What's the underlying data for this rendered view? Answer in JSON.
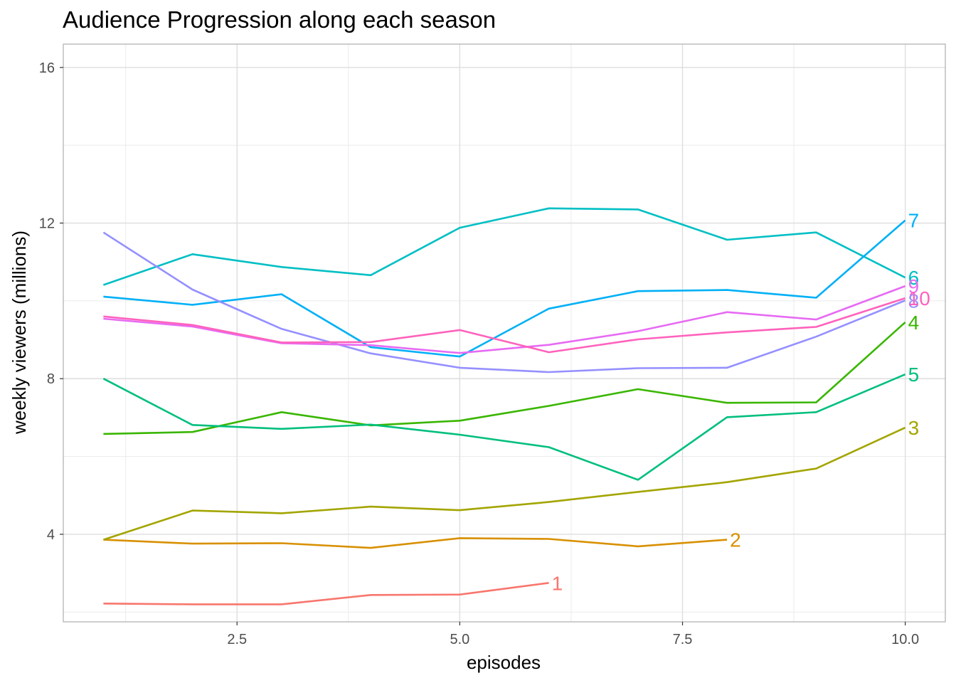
{
  "chart_data": {
    "type": "line",
    "title": "Audience Progression along each season",
    "xlabel": "episodes",
    "ylabel": "weekly viewers (millions)",
    "xlim": [
      0.55,
      10.45
    ],
    "ylim": [
      1.75,
      16.6
    ],
    "x_ticks": [
      2.5,
      5.0,
      7.5,
      10.0
    ],
    "x_tick_labels": [
      "2.5",
      "5.0",
      "7.5",
      "10.0"
    ],
    "y_ticks": [
      4,
      8,
      12,
      16
    ],
    "y_tick_labels": [
      "4",
      "8",
      "12",
      "16"
    ],
    "grid": true,
    "legend": "none",
    "series": [
      {
        "name": "1",
        "color": "#F8766D",
        "x": [
          1,
          2,
          3,
          4,
          5,
          6
        ],
        "values": [
          2.22,
          2.2,
          2.2,
          2.44,
          2.45,
          2.75
        ]
      },
      {
        "name": "2",
        "color": "#D89000",
        "x": [
          1,
          2,
          3,
          4,
          5,
          6,
          7,
          8
        ],
        "values": [
          3.86,
          3.76,
          3.77,
          3.65,
          3.9,
          3.88,
          3.69,
          3.86
        ]
      },
      {
        "name": "3",
        "color": "#A3A500",
        "x": [
          1,
          2,
          3,
          4,
          5,
          6,
          7,
          8,
          9,
          10
        ],
        "values": [
          3.86,
          4.61,
          4.54,
          4.71,
          4.62,
          4.83,
          5.09,
          5.34,
          5.69,
          6.74
        ]
      },
      {
        "name": "4",
        "color": "#39B600",
        "x": [
          1,
          2,
          3,
          4,
          5,
          6,
          7,
          8,
          9,
          10
        ],
        "values": [
          6.58,
          6.63,
          7.14,
          6.8,
          6.92,
          7.3,
          7.73,
          7.38,
          7.39,
          9.45
        ]
      },
      {
        "name": "5",
        "color": "#00BF7D",
        "x": [
          1,
          2,
          3,
          4,
          5,
          6,
          7,
          8,
          9,
          10
        ],
        "values": [
          8.0,
          6.81,
          6.71,
          6.82,
          6.56,
          6.24,
          5.4,
          7.01,
          7.14,
          8.11
        ]
      },
      {
        "name": "6",
        "color": "#00BFC4",
        "x": [
          1,
          2,
          3,
          4,
          5,
          6,
          7,
          8,
          9,
          10
        ],
        "values": [
          10.41,
          11.2,
          10.87,
          10.66,
          11.88,
          12.38,
          12.35,
          11.57,
          11.76,
          10.6
        ]
      },
      {
        "name": "7",
        "color": "#00B0F6",
        "x": [
          1,
          2,
          3,
          4,
          5,
          6,
          7,
          8,
          9,
          10
        ],
        "values": [
          10.11,
          9.9,
          10.17,
          8.81,
          8.57,
          9.8,
          10.25,
          10.28,
          10.08,
          12.07
        ]
      },
      {
        "name": "8",
        "color": "#9590FF",
        "x": [
          1,
          2,
          3,
          4,
          5,
          6,
          7,
          8,
          9,
          10
        ],
        "values": [
          11.76,
          10.29,
          9.28,
          8.65,
          8.28,
          8.17,
          8.27,
          8.28,
          9.08,
          10.01
        ]
      },
      {
        "name": "9",
        "color": "#E76BF3",
        "x": [
          1,
          2,
          3,
          4,
          5,
          6,
          7,
          8,
          9,
          10
        ],
        "values": [
          9.54,
          9.34,
          8.91,
          8.86,
          8.66,
          8.87,
          9.22,
          9.71,
          9.52,
          10.38
        ]
      },
      {
        "name": "10",
        "color": "#FF62BC",
        "x": [
          1,
          2,
          3,
          4,
          5,
          6,
          7,
          8,
          9,
          10
        ],
        "values": [
          9.6,
          9.38,
          8.93,
          8.94,
          9.25,
          8.68,
          9.01,
          9.19,
          9.33,
          10.07
        ]
      }
    ]
  }
}
